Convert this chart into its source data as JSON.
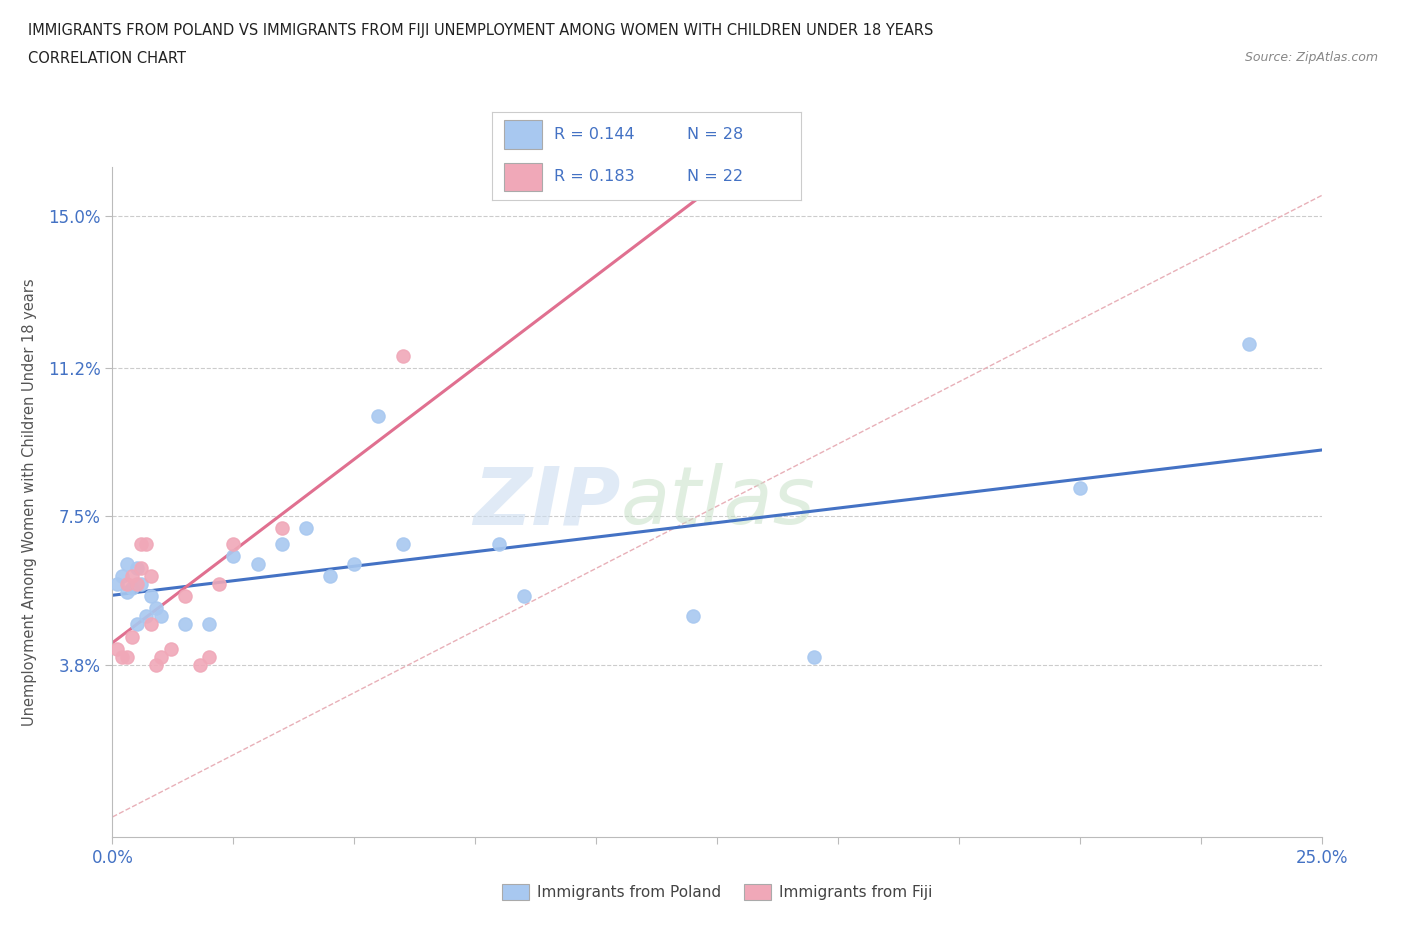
{
  "title_line1": "IMMIGRANTS FROM POLAND VS IMMIGRANTS FROM FIJI UNEMPLOYMENT AMONG WOMEN WITH CHILDREN UNDER 18 YEARS",
  "title_line2": "CORRELATION CHART",
  "source_text": "Source: ZipAtlas.com",
  "ylabel": "Unemployment Among Women with Children Under 18 years",
  "xlim": [
    0.0,
    0.25
  ],
  "ylim": [
    -0.005,
    0.162
  ],
  "yticks": [
    0.038,
    0.075,
    0.112,
    0.15
  ],
  "ytick_labels": [
    "3.8%",
    "7.5%",
    "11.2%",
    "15.0%"
  ],
  "xticks": [
    0.0,
    0.025,
    0.05,
    0.075,
    0.1,
    0.125,
    0.15,
    0.175,
    0.2,
    0.225,
    0.25
  ],
  "poland_color": "#a8c8f0",
  "fiji_color": "#f0a8b8",
  "trend_poland_color": "#4472c4",
  "trend_fiji_color": "#e07090",
  "diag_color": "#e8b0b8",
  "watermark_zip": "ZIP",
  "watermark_atlas": "atlas",
  "poland_x": [
    0.001,
    0.002,
    0.003,
    0.003,
    0.004,
    0.005,
    0.005,
    0.006,
    0.007,
    0.008,
    0.009,
    0.01,
    0.015,
    0.02,
    0.025,
    0.03,
    0.035,
    0.04,
    0.045,
    0.05,
    0.055,
    0.06,
    0.08,
    0.085,
    0.12,
    0.145,
    0.2,
    0.235
  ],
  "poland_y": [
    0.058,
    0.06,
    0.056,
    0.063,
    0.057,
    0.062,
    0.048,
    0.058,
    0.05,
    0.055,
    0.052,
    0.05,
    0.048,
    0.048,
    0.065,
    0.063,
    0.068,
    0.072,
    0.06,
    0.063,
    0.1,
    0.068,
    0.068,
    0.055,
    0.05,
    0.04,
    0.082,
    0.118
  ],
  "fiji_x": [
    0.001,
    0.002,
    0.003,
    0.003,
    0.004,
    0.004,
    0.005,
    0.006,
    0.006,
    0.007,
    0.008,
    0.008,
    0.009,
    0.01,
    0.012,
    0.015,
    0.018,
    0.02,
    0.022,
    0.025,
    0.035,
    0.06
  ],
  "fiji_y": [
    0.042,
    0.04,
    0.058,
    0.04,
    0.06,
    0.045,
    0.058,
    0.068,
    0.062,
    0.068,
    0.06,
    0.048,
    0.038,
    0.04,
    0.042,
    0.055,
    0.038,
    0.04,
    0.058,
    0.068,
    0.072,
    0.115
  ]
}
